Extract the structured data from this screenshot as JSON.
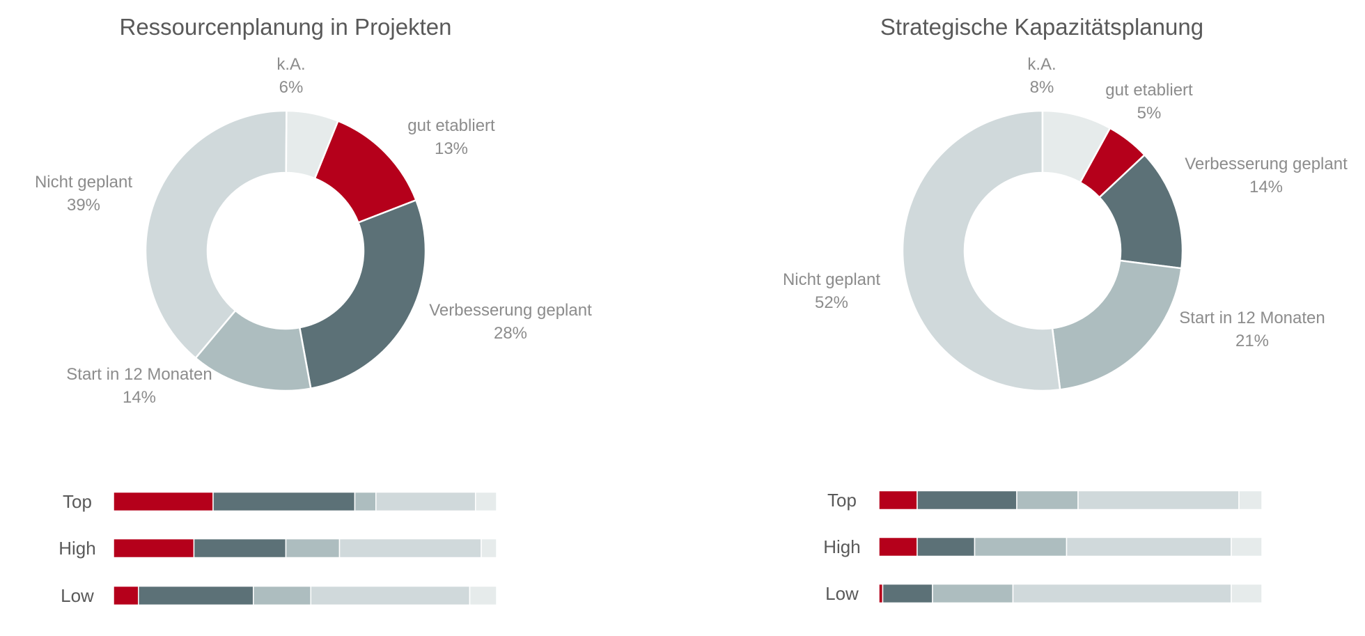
{
  "colors": {
    "gut etabliert": "#b5001b",
    "Verbesserung geplant": "#5c7177",
    "Start in 12 Monaten": "#adbdbf",
    "Nicht geplant": "#d0d9db",
    "k.A.": "#e6ebeb"
  },
  "chart_data": [
    {
      "type": "pie",
      "title": "Ressourcenplanung  in Projekten",
      "slices": [
        {
          "name": "gut etabliert",
          "value": 13,
          "label": "13%"
        },
        {
          "name": "Verbesserung geplant",
          "value": 28,
          "label": "28%"
        },
        {
          "name": "Start in 12 Monaten",
          "value": 14,
          "label": "14%"
        },
        {
          "name": "Nicht geplant",
          "value": 39,
          "label": "39%"
        },
        {
          "name": "k.A.",
          "value": 6,
          "label": "6%"
        }
      ]
    },
    {
      "type": "pie",
      "title": "Strategische Kapazitätsplanung",
      "slices": [
        {
          "name": "gut etabliert",
          "value": 5,
          "label": "5%"
        },
        {
          "name": "Verbesserung geplant",
          "value": 14,
          "label": "14%"
        },
        {
          "name": "Start in 12 Monaten",
          "value": 21,
          "label": "21%"
        },
        {
          "name": "Nicht geplant",
          "value": 52,
          "label": "52%"
        },
        {
          "name": "k.A.",
          "value": 8,
          "label": "8%"
        }
      ]
    },
    {
      "type": "bar",
      "stacked": true,
      "orientation": "horizontal",
      "categories": [
        "Top",
        "High",
        "Low"
      ],
      "series": [
        {
          "name": "gut etabliert",
          "values": [
            26,
            21,
            6.5
          ]
        },
        {
          "name": "Verbesserung geplant",
          "values": [
            37,
            24,
            30
          ]
        },
        {
          "name": "Start in 12 Monaten",
          "values": [
            5.5,
            14,
            15
          ]
        },
        {
          "name": "Nicht geplant",
          "values": [
            26,
            37,
            41.5
          ]
        },
        {
          "name": "k.A.",
          "values": [
            5.5,
            4,
            7
          ]
        }
      ]
    },
    {
      "type": "bar",
      "stacked": true,
      "orientation": "horizontal",
      "categories": [
        "Top",
        "High",
        "Low"
      ],
      "series": [
        {
          "name": "gut etabliert",
          "values": [
            10,
            10,
            1
          ]
        },
        {
          "name": "Verbesserung geplant",
          "values": [
            26,
            15,
            13
          ]
        },
        {
          "name": "Start in 12 Monaten",
          "values": [
            16,
            24,
            21
          ]
        },
        {
          "name": "Nicht geplant",
          "values": [
            42,
            43,
            57
          ]
        },
        {
          "name": "k.A.",
          "values": [
            6,
            8,
            8
          ]
        }
      ]
    }
  ]
}
